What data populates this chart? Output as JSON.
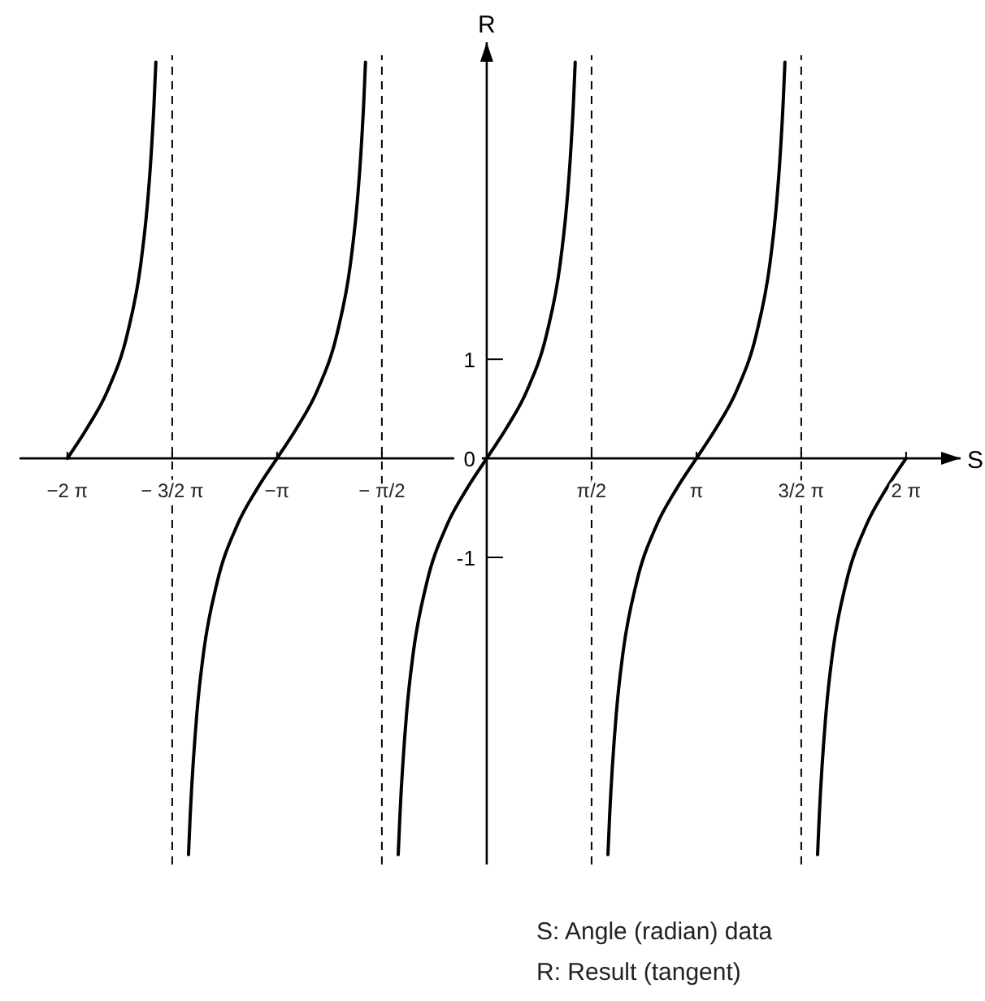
{
  "chart_data": {
    "type": "line",
    "xlabel": "S",
    "ylabel": "R",
    "xlim": [
      -7,
      7.1
    ],
    "ylim": [
      -4.1,
      4.2
    ],
    "xticks": [
      {
        "value": -6.283,
        "label": "−2 π"
      },
      {
        "value": -4.712,
        "label": "− 3/2 π"
      },
      {
        "value": -3.142,
        "label": "−π"
      },
      {
        "value": -1.571,
        "label": "− π/2"
      },
      {
        "value": 1.571,
        "label": "π/2"
      },
      {
        "value": 3.142,
        "label": "π"
      },
      {
        "value": 4.712,
        "label": "3/2 π"
      },
      {
        "value": 6.283,
        "label": "2 π"
      }
    ],
    "yticks": [
      -1,
      0,
      1
    ],
    "grid": false,
    "marker": "none",
    "line_style": "solid",
    "series": [
      {
        "color": "#000000",
        "x": [
          -6.283,
          -5.983,
          -5.683,
          -5.383,
          -5.183,
          -5.083,
          -5.033,
          -4.983,
          -4.957,
          null,
          -4.468,
          -4.442,
          -4.342,
          -4.242,
          -4.042,
          -3.742,
          -3.442,
          -3.142,
          -2.842,
          -2.542,
          -2.242,
          -2.042,
          -1.942,
          -1.892,
          -1.842,
          -1.816,
          null,
          -1.326,
          -1.3,
          -1.2,
          -1.1,
          -0.9,
          -0.6,
          -0.3,
          0,
          0.3,
          0.6,
          0.9,
          1.1,
          1.2,
          1.25,
          1.3,
          1.326,
          null,
          1.816,
          1.842,
          1.942,
          2.042,
          2.242,
          2.542,
          2.842,
          3.142,
          3.442,
          3.742,
          4.042,
          4.242,
          4.342,
          4.392,
          4.442,
          4.468,
          null,
          4.957,
          4.983,
          5.083,
          5.183,
          5.383,
          5.683,
          5.983,
          6.283
        ],
        "values": [
          0,
          0.31,
          0.68,
          1.26,
          1.96,
          2.57,
          3.01,
          3.6,
          4,
          null,
          -4,
          -3.6,
          -2.57,
          -1.96,
          -1.26,
          -0.68,
          -0.31,
          0,
          0.31,
          0.68,
          1.26,
          1.96,
          2.57,
          3.01,
          3.6,
          4,
          null,
          -4,
          -3.6,
          -2.57,
          -1.96,
          -1.26,
          -0.68,
          -0.31,
          0,
          0.31,
          0.68,
          1.26,
          1.96,
          2.57,
          3.01,
          3.6,
          4,
          null,
          -4,
          -3.6,
          -2.57,
          -1.96,
          -1.26,
          -0.68,
          -0.31,
          0,
          0.31,
          0.68,
          1.26,
          1.96,
          2.57,
          3.01,
          3.6,
          4,
          null,
          -4,
          -3.6,
          -2.57,
          -1.96,
          -1.26,
          -0.68,
          -0.31,
          0
        ]
      }
    ],
    "ref_lines": [
      {
        "axis": "x",
        "value": -4.712,
        "line_style": "dashed"
      },
      {
        "axis": "x",
        "value": -1.571,
        "line_style": "dashed"
      },
      {
        "axis": "x",
        "value": 1.571,
        "line_style": "dashed"
      },
      {
        "axis": "x",
        "value": 4.712,
        "line_style": "dashed"
      }
    ],
    "annotations": [
      "S: Angle (radian) data",
      "R: Result (tangent)"
    ]
  }
}
